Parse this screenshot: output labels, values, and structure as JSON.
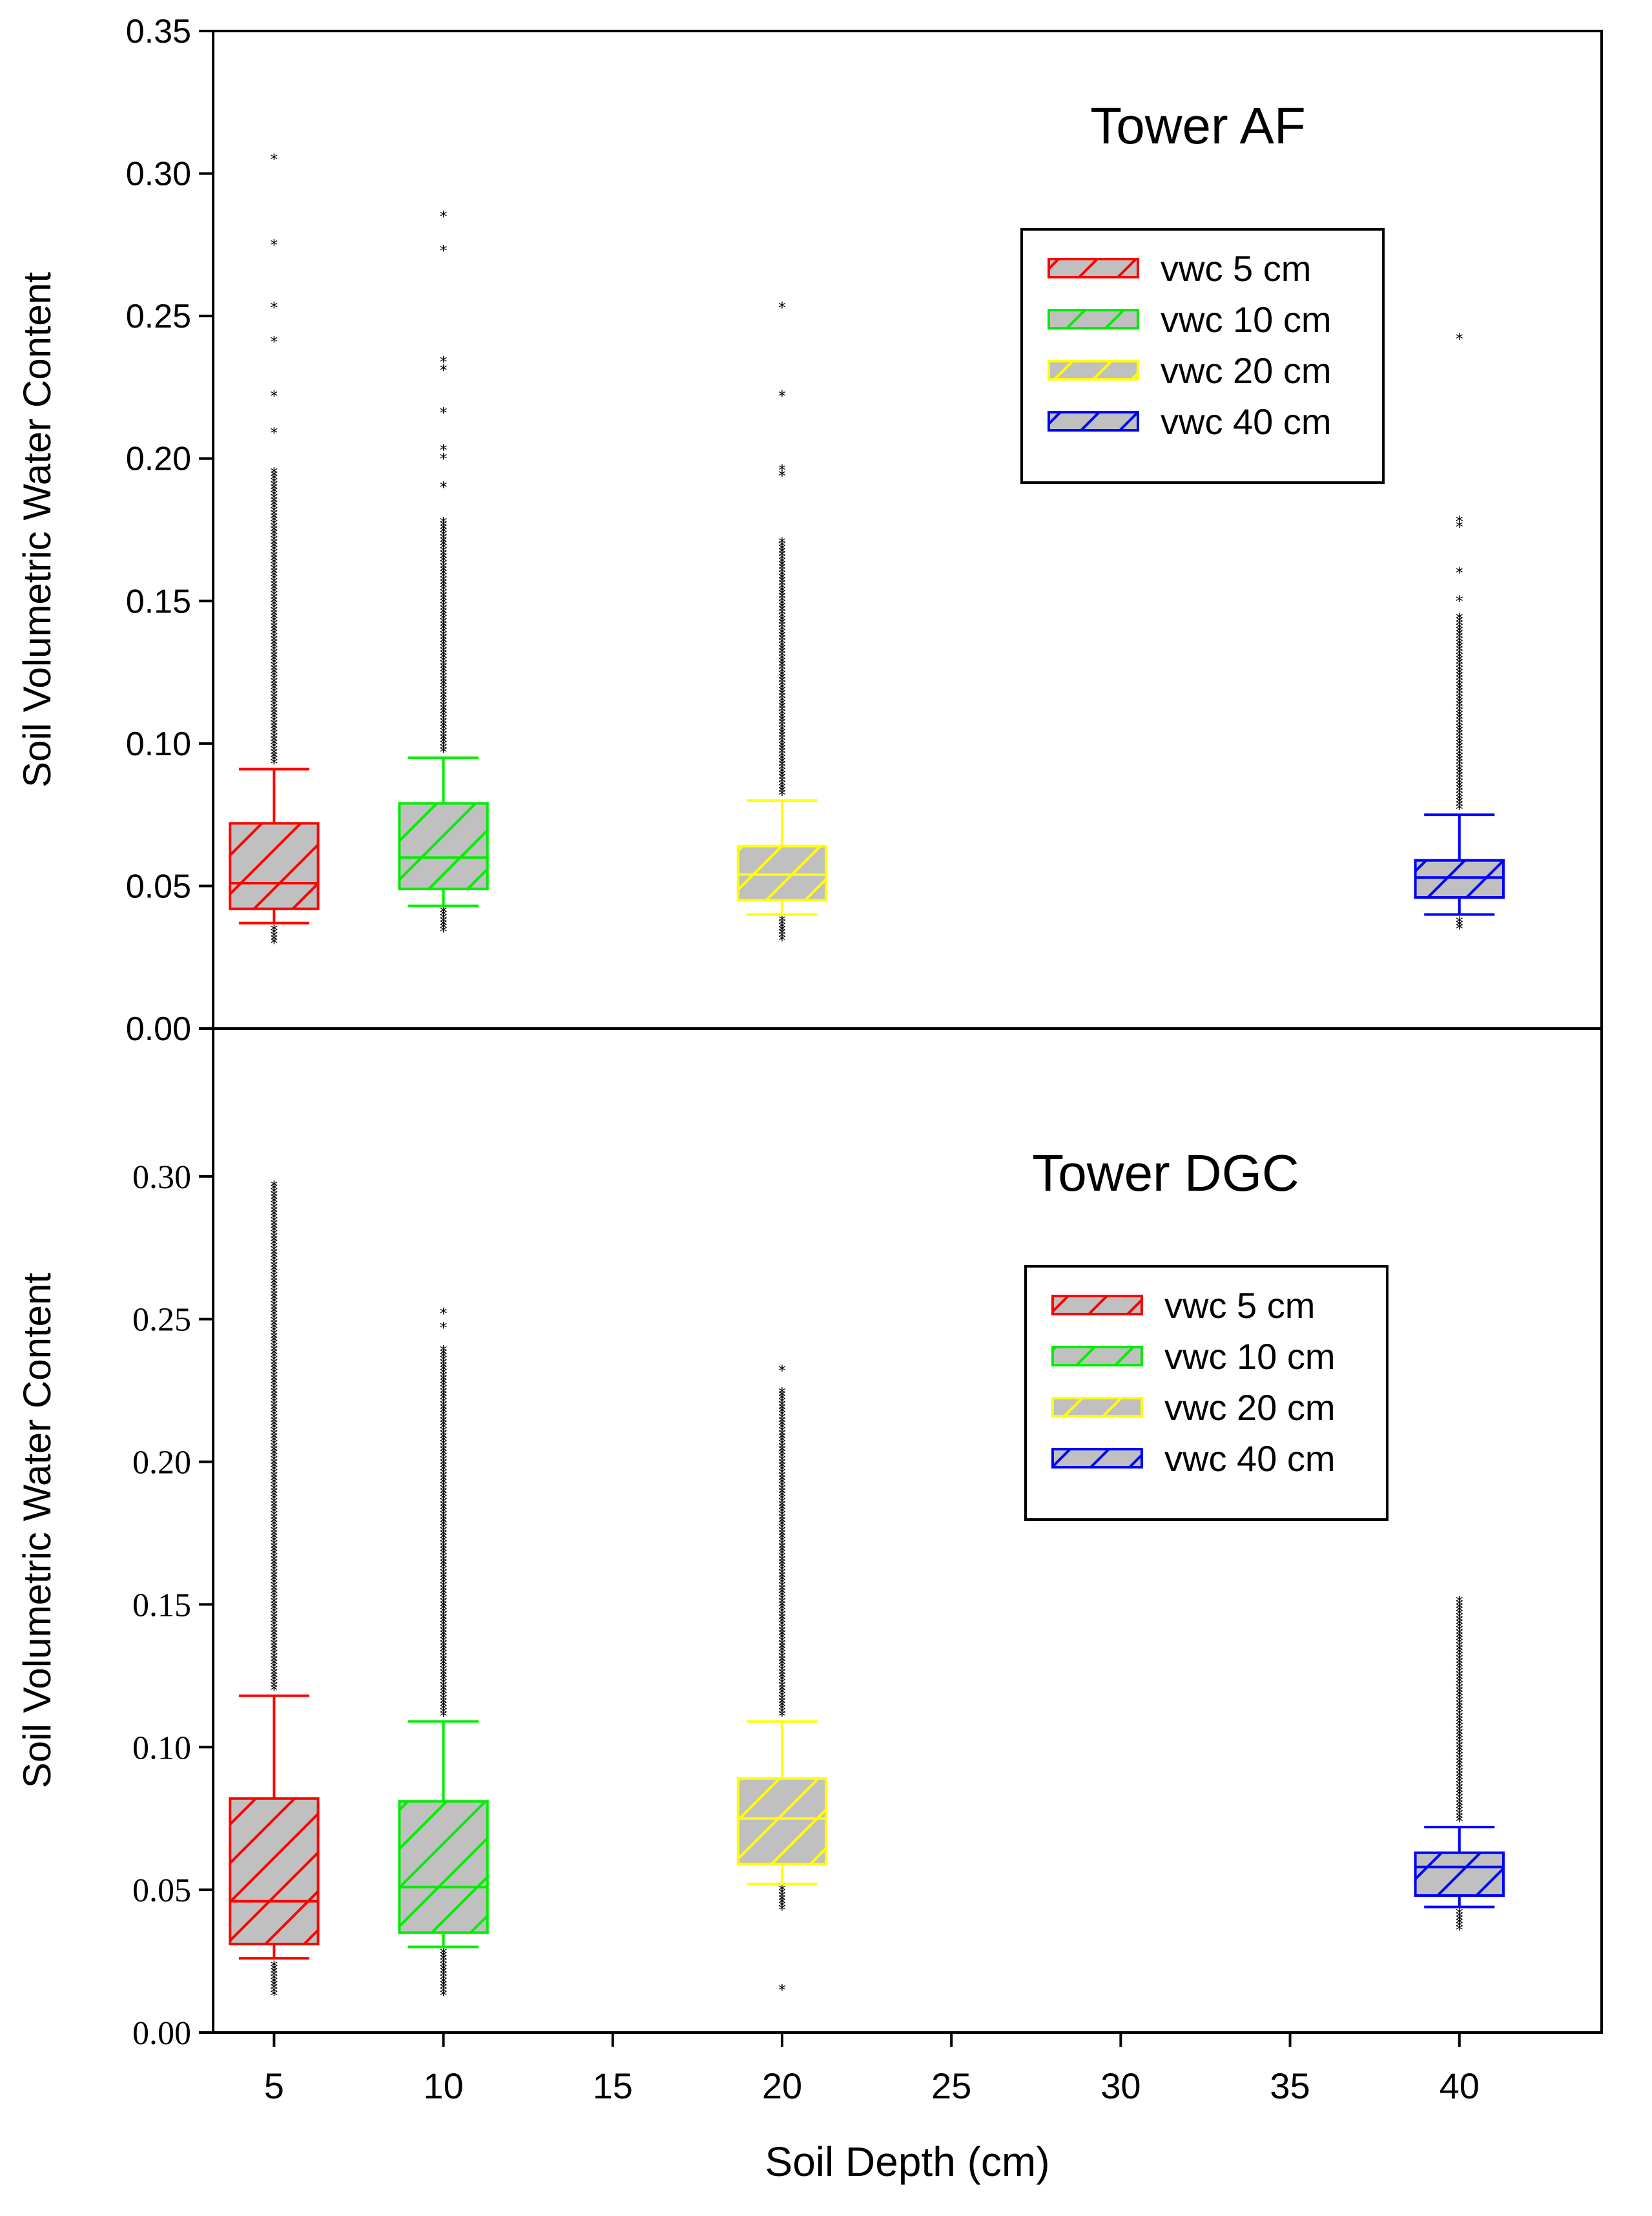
{
  "chart_data": [
    {
      "type": "box",
      "title": "Tower AF",
      "ylabel": "Soil Volumetric Water Content",
      "ylim": [
        0,
        0.35
      ],
      "yticks": [
        "0.00",
        "0.05",
        "0.10",
        "0.15",
        "0.20",
        "0.25",
        "0.30",
        "0.35"
      ],
      "yticks_values": [
        0,
        0.05,
        0.1,
        0.15,
        0.2,
        0.25,
        0.3,
        0.35
      ],
      "legend_position": "top-right",
      "series": [
        {
          "name": "vwc 5 cm",
          "x": 5,
          "color": "#ff0000",
          "whisker_low": 0.037,
          "q1": 0.042,
          "median": 0.051,
          "q3": 0.072,
          "whisker_high": 0.091,
          "outlier_high_range": [
            0.093,
            0.196
          ],
          "outliers_high": [
            0.209,
            0.222,
            0.241,
            0.253,
            0.275,
            0.305
          ],
          "outlier_low_range": [
            0.03,
            0.035
          ]
        },
        {
          "name": "vwc 10 cm",
          "x": 10,
          "color": "#00ee00",
          "whisker_low": 0.043,
          "q1": 0.049,
          "median": 0.06,
          "q3": 0.079,
          "whisker_high": 0.095,
          "outlier_high_range": [
            0.097,
            0.178
          ],
          "outliers_high": [
            0.19,
            0.2,
            0.203,
            0.216,
            0.231,
            0.234,
            0.273,
            0.285
          ],
          "outlier_low_range": [
            0.034,
            0.041
          ]
        },
        {
          "name": "vwc 20 cm",
          "x": 20,
          "color": "#ffff00",
          "whisker_low": 0.04,
          "q1": 0.045,
          "median": 0.054,
          "q3": 0.064,
          "whisker_high": 0.08,
          "outlier_high_range": [
            0.082,
            0.171
          ],
          "outliers_high": [
            0.194,
            0.196,
            0.222,
            0.253
          ],
          "outlier_low_range": [
            0.031,
            0.038
          ]
        },
        {
          "name": "vwc 40 cm",
          "x": 40,
          "color": "#0000ff",
          "whisker_low": 0.04,
          "q1": 0.046,
          "median": 0.053,
          "q3": 0.059,
          "whisker_high": 0.075,
          "outlier_high_range": [
            0.077,
            0.145
          ],
          "outliers_high": [
            0.15,
            0.16,
            0.176,
            0.178,
            0.242
          ],
          "outlier_low_range": [
            0.035,
            0.038
          ]
        }
      ]
    },
    {
      "type": "box",
      "title": "Tower DGC",
      "ylabel": "Soil Volumetric Water Content",
      "xlabel": "Soil Depth (cm)",
      "ylim": [
        0,
        0.35
      ],
      "yticks": [
        "0.00",
        "0.05",
        "0.10",
        "0.15",
        "0.20",
        "0.25",
        "0.30"
      ],
      "yticks_values": [
        0,
        0.05,
        0.1,
        0.15,
        0.2,
        0.25,
        0.3
      ],
      "xlim": [
        3.2,
        44.2
      ],
      "xticks": [
        "5",
        "10",
        "15",
        "20",
        "25",
        "30",
        "35",
        "40"
      ],
      "xticks_values": [
        5,
        10,
        15,
        20,
        25,
        30,
        35,
        40
      ],
      "legend_position": "top-right",
      "series": [
        {
          "name": "vwc 5 cm",
          "x": 5,
          "color": "#ff0000",
          "whisker_low": 0.026,
          "q1": 0.031,
          "median": 0.046,
          "q3": 0.082,
          "whisker_high": 0.118,
          "outlier_high_range": [
            0.12,
            0.297
          ],
          "outliers_high": [],
          "outlier_low_range": [
            0.013,
            0.024
          ]
        },
        {
          "name": "vwc 10 cm",
          "x": 10,
          "color": "#00ee00",
          "whisker_low": 0.03,
          "q1": 0.035,
          "median": 0.051,
          "q3": 0.081,
          "whisker_high": 0.109,
          "outlier_high_range": [
            0.111,
            0.24
          ],
          "outliers_high": [
            0.247,
            0.252
          ],
          "outlier_low_range": [
            0.013,
            0.028
          ]
        },
        {
          "name": "vwc 20 cm",
          "x": 20,
          "color": "#ffff00",
          "whisker_low": 0.052,
          "q1": 0.059,
          "median": 0.075,
          "q3": 0.089,
          "whisker_high": 0.109,
          "outlier_high_range": [
            0.111,
            0.225
          ],
          "outliers_high": [
            0.232
          ],
          "outlier_low_range": [
            0.043,
            0.05
          ],
          "outliers_low": [
            0.015
          ]
        },
        {
          "name": "vwc 40 cm",
          "x": 40,
          "color": "#0000ff",
          "whisker_low": 0.044,
          "q1": 0.048,
          "median": 0.058,
          "q3": 0.063,
          "whisker_high": 0.072,
          "outlier_high_range": [
            0.074,
            0.151
          ],
          "outliers_high": [],
          "outlier_low_range": [
            0.036,
            0.042
          ]
        }
      ]
    }
  ]
}
